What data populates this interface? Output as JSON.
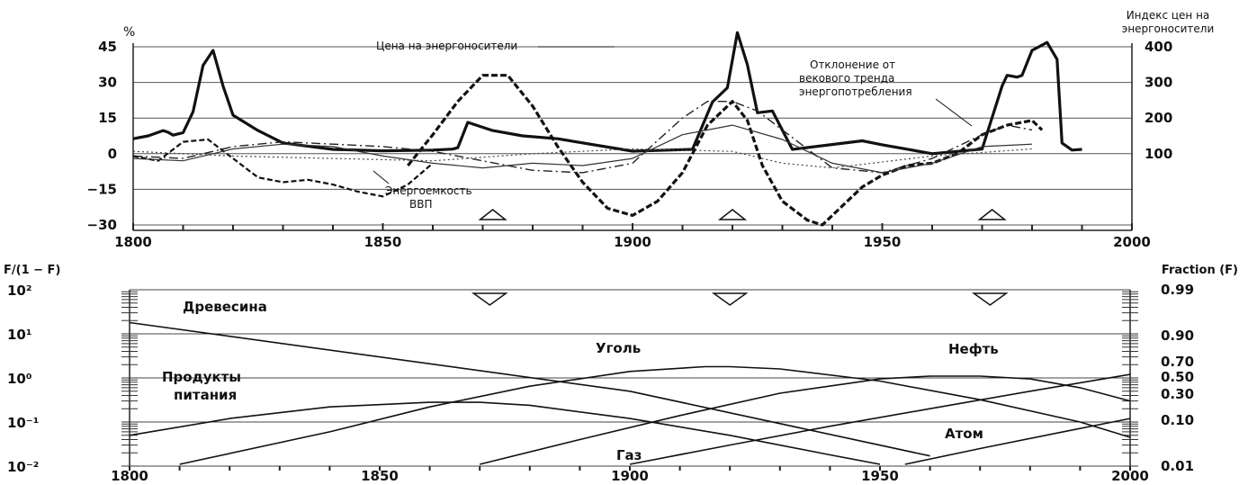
{
  "chart_data": [
    {
      "type": "line",
      "y_left_unit": "%",
      "y_right_title": [
        "Индекс цен на",
        "энергоносители"
      ],
      "x_ticks": [
        "1800",
        "1850",
        "1900",
        "1950",
        "2000"
      ],
      "y_left_ticks": [
        "45",
        "30",
        "15",
        "0",
        "−15",
        "−30"
      ],
      "y_right_ticks": [
        "400",
        "300",
        "200",
        "100"
      ],
      "xlim": [
        1800,
        2000
      ],
      "ylim_left": [
        -30,
        45
      ],
      "ylim_right": [
        0,
        400
      ],
      "grid": true,
      "annotations": {
        "price": "Цена на энергоносители",
        "deviation": [
          "Отклонение от",
          "векового тренда",
          "энергопотребления"
        ],
        "intensity": [
          "Энергоемкость",
          "ВВП"
        ]
      },
      "peak_markers_years": [
        1872,
        1920,
        1972
      ],
      "series": [
        {
          "key": "price_index",
          "style": "thick-solid",
          "axis": "right",
          "x": [
            1800,
            1803,
            1806,
            1807,
            1808,
            1810,
            1812,
            1814,
            1816,
            1818,
            1820,
            1825,
            1830,
            1840,
            1850,
            1860,
            1864,
            1865,
            1867,
            1872,
            1878,
            1885,
            1900,
            1912,
            1916,
            1919,
            1921,
            1923,
            1925,
            1928,
            1932,
            1946,
            1950,
            1960,
            1970,
            1974,
            1975,
            1977,
            1978,
            1980,
            1983,
            1985,
            1986,
            1988,
            1990
          ],
          "y": [
            142,
            150,
            165,
            160,
            152,
            159,
            218,
            348,
            390,
            290,
            208,
            165,
            130,
            112,
            108,
            110,
            113,
            117,
            188,
            165,
            150,
            142,
            107,
            112,
            245,
            285,
            440,
            350,
            215,
            220,
            112,
            136,
            125,
            100,
            113,
            290,
            320,
            315,
            320,
            390,
            412,
            365,
            130,
            110,
            112
          ]
        },
        {
          "key": "energy_price",
          "style": "thick-dashed",
          "axis": "left",
          "x": [
            1855,
            1860,
            1865,
            1870,
            1875,
            1880,
            1885,
            1890,
            1895,
            1900,
            1905,
            1910,
            1915,
            1918,
            1920,
            1923,
            1926,
            1930,
            1935,
            1938,
            1942,
            1946,
            1950,
            1955,
            1960,
            1965,
            1970,
            1975,
            1980,
            1982
          ],
          "y": [
            -5,
            8,
            22,
            33,
            33,
            20,
            3,
            -12,
            -23,
            -26,
            -20,
            -8,
            12,
            18,
            22,
            14,
            -5,
            -20,
            -28,
            -30,
            -22,
            -14,
            -9,
            -5,
            -4,
            0,
            8,
            12,
            14,
            10
          ]
        },
        {
          "key": "consumption_deviation",
          "style": "dash-dot",
          "axis": "left",
          "x": [
            1800,
            1810,
            1820,
            1830,
            1840,
            1850,
            1860,
            1870,
            1880,
            1890,
            1900,
            1910,
            1915,
            1920,
            1925,
            1930,
            1940,
            1950,
            1960,
            1970,
            1975,
            1980
          ],
          "y": [
            -1,
            -2,
            3,
            5,
            4,
            3,
            1,
            -3,
            -7,
            -8,
            -4,
            15,
            22,
            22,
            18,
            10,
            -6,
            -8,
            -2,
            8,
            12,
            10
          ]
        },
        {
          "key": "gdp_energy_intensity",
          "style": "dashed-thin",
          "axis": "left",
          "x": [
            1800,
            1805,
            1810,
            1815,
            1820,
            1825,
            1830,
            1835,
            1840,
            1845,
            1850,
            1855,
            1860
          ],
          "y": [
            -1,
            -3,
            5,
            6,
            -2,
            -10,
            -12,
            -11,
            -13,
            -16,
            -18,
            -13,
            -4
          ]
        },
        {
          "key": "secular_wave",
          "style": "thin-solid",
          "axis": "left",
          "x": [
            1800,
            1810,
            1820,
            1830,
            1840,
            1850,
            1860,
            1870,
            1880,
            1890,
            1900,
            1910,
            1920,
            1930,
            1940,
            1950,
            1960,
            1970,
            1980
          ],
          "y": [
            -2,
            -3,
            2,
            4,
            3,
            -1,
            -4,
            -6,
            -4,
            -5,
            -2,
            8,
            12,
            6,
            -4,
            -8,
            -4,
            3,
            4
          ]
        },
        {
          "key": "dotted_line",
          "style": "dotted",
          "axis": "left",
          "x": [
            1800,
            1820,
            1840,
            1860,
            1880,
            1900,
            1920,
            1930,
            1940,
            1960,
            1980
          ],
          "y": [
            1,
            -1,
            -2,
            -3,
            0,
            2,
            1,
            -4,
            -6,
            -1,
            2
          ]
        }
      ]
    },
    {
      "type": "line",
      "y_left_title": "F/(1 − F)",
      "y_right_title": "Fraction (F)",
      "x_ticks": [
        "1800",
        "1850",
        "1900",
        "1950",
        "2000"
      ],
      "y_left_ticks": [
        "10²",
        "10¹",
        "10⁰",
        "10⁻¹",
        "10⁻²"
      ],
      "y_left_values": [
        100,
        10,
        1,
        0.1,
        0.01
      ],
      "y_right_ticks": [
        "0.99",
        "0.90",
        "0.70",
        "0.50",
        "0.30",
        "0.10",
        "0.01"
      ],
      "y_right_values": [
        0.99,
        0.9,
        0.7,
        0.5,
        0.3,
        0.1,
        0.01
      ],
      "xlim": [
        1800,
        2000
      ],
      "ylim_log": [
        0.01,
        100
      ],
      "y_scale": "log",
      "grid": true,
      "trough_markers_years": [
        1872,
        1920,
        1972
      ],
      "series": [
        {
          "name": "Древесина",
          "x": [
            1800,
            1900,
            1960
          ],
          "y": [
            18,
            0.5,
            0.017
          ]
        },
        {
          "name": "Продукты питания",
          "x": [
            1800,
            1820,
            1840,
            1860,
            1870,
            1880,
            1900,
            1920,
            1940,
            1950
          ],
          "y": [
            0.05,
            0.12,
            0.22,
            0.28,
            0.28,
            0.24,
            0.12,
            0.05,
            0.018,
            0.011
          ]
        },
        {
          "name": "Уголь",
          "x": [
            1810,
            1840,
            1860,
            1880,
            1900,
            1915,
            1920,
            1930,
            1950,
            1970,
            1990,
            2000
          ],
          "y": [
            0.011,
            0.06,
            0.22,
            0.65,
            1.4,
            1.8,
            1.8,
            1.6,
            0.85,
            0.32,
            0.1,
            0.045
          ]
        },
        {
          "name": "Нефть",
          "x": [
            1870,
            1890,
            1910,
            1930,
            1950,
            1960,
            1970,
            1980,
            1990,
            2000
          ],
          "y": [
            0.011,
            0.04,
            0.14,
            0.45,
            0.95,
            1.1,
            1.1,
            0.95,
            0.6,
            0.3
          ]
        },
        {
          "name": "Газ",
          "x": [
            1900,
            1920,
            1940,
            1960,
            1980,
            2000
          ],
          "y": [
            0.011,
            0.03,
            0.08,
            0.2,
            0.5,
            1.2
          ]
        },
        {
          "name": "Атом",
          "x": [
            1955,
            1970,
            1985,
            2000
          ],
          "y": [
            0.011,
            0.025,
            0.055,
            0.12
          ]
        }
      ]
    }
  ]
}
